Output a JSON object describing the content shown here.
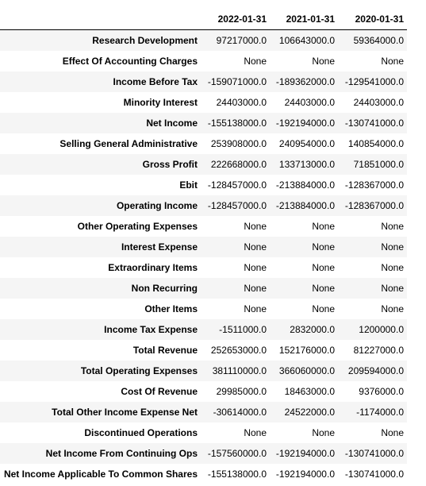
{
  "table": {
    "index_header": "",
    "columns": [
      "2022-01-31",
      "2021-01-31",
      "2020-01-31"
    ],
    "rows": [
      {
        "label": "Research Development",
        "values": [
          "97217000.0",
          "106643000.0",
          "59364000.0"
        ]
      },
      {
        "label": "Effect Of Accounting Charges",
        "values": [
          "None",
          "None",
          "None"
        ]
      },
      {
        "label": "Income Before Tax",
        "values": [
          "-159071000.0",
          "-189362000.0",
          "-129541000.0"
        ]
      },
      {
        "label": "Minority Interest",
        "values": [
          "24403000.0",
          "24403000.0",
          "24403000.0"
        ]
      },
      {
        "label": "Net Income",
        "values": [
          "-155138000.0",
          "-192194000.0",
          "-130741000.0"
        ]
      },
      {
        "label": "Selling General Administrative",
        "values": [
          "253908000.0",
          "240954000.0",
          "140854000.0"
        ]
      },
      {
        "label": "Gross Profit",
        "values": [
          "222668000.0",
          "133713000.0",
          "71851000.0"
        ]
      },
      {
        "label": "Ebit",
        "values": [
          "-128457000.0",
          "-213884000.0",
          "-128367000.0"
        ]
      },
      {
        "label": "Operating Income",
        "values": [
          "-128457000.0",
          "-213884000.0",
          "-128367000.0"
        ]
      },
      {
        "label": "Other Operating Expenses",
        "values": [
          "None",
          "None",
          "None"
        ]
      },
      {
        "label": "Interest Expense",
        "values": [
          "None",
          "None",
          "None"
        ]
      },
      {
        "label": "Extraordinary Items",
        "values": [
          "None",
          "None",
          "None"
        ]
      },
      {
        "label": "Non Recurring",
        "values": [
          "None",
          "None",
          "None"
        ]
      },
      {
        "label": "Other Items",
        "values": [
          "None",
          "None",
          "None"
        ]
      },
      {
        "label": "Income Tax Expense",
        "values": [
          "-1511000.0",
          "2832000.0",
          "1200000.0"
        ]
      },
      {
        "label": "Total Revenue",
        "values": [
          "252653000.0",
          "152176000.0",
          "81227000.0"
        ]
      },
      {
        "label": "Total Operating Expenses",
        "values": [
          "381110000.0",
          "366060000.0",
          "209594000.0"
        ]
      },
      {
        "label": "Cost Of Revenue",
        "values": [
          "29985000.0",
          "18463000.0",
          "9376000.0"
        ]
      },
      {
        "label": "Total Other Income Expense Net",
        "values": [
          "-30614000.0",
          "24522000.0",
          "-1174000.0"
        ]
      },
      {
        "label": "Discontinued Operations",
        "values": [
          "None",
          "None",
          "None"
        ]
      },
      {
        "label": "Net Income From Continuing Ops",
        "values": [
          "-157560000.0",
          "-192194000.0",
          "-130741000.0"
        ]
      },
      {
        "label": "Net Income Applicable To Common Shares",
        "values": [
          "-155138000.0",
          "-192194000.0",
          "-130741000.0"
        ]
      }
    ]
  }
}
